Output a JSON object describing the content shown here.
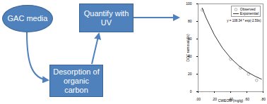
{
  "diagram": {
    "nodes": [
      {
        "label": "GAC media"
      },
      {
        "label": "Desorption of organic carbon"
      },
      {
        "label": "Quantify with UV"
      }
    ]
  },
  "chart_data": {
    "type": "scatter",
    "xlabel": "CWEOM (mg/g)",
    "ylabel": "DOC removal (%)",
    "annotation": "y = 108.34 * exp(-2.59x)",
    "xlim": [
      0,
      0.8
    ],
    "xticks": [
      {
        "value": 0,
        "label": ".00"
      },
      {
        "value": 0.2,
        "label": ".20"
      },
      {
        "value": 0.4,
        "label": ".40"
      },
      {
        "value": 0.6,
        "label": ".60"
      },
      {
        "value": 0.8,
        "label": ".80"
      }
    ],
    "ylim": [
      0,
      100
    ],
    "yticks": [
      0,
      20,
      40,
      60,
      80,
      100
    ],
    "legend": "top-right",
    "series": [
      {
        "name": "Observed",
        "type": "scatter",
        "marker": "circle",
        "color": "#808080",
        "x": [
          0.05,
          0.4,
          0.52,
          0.62,
          0.72
        ],
        "values": [
          93,
          37,
          27,
          20,
          13
        ]
      },
      {
        "name": "Exponential",
        "type": "line",
        "line_style": "solid",
        "color": "#000000",
        "x": [
          0.05,
          0.1,
          0.2,
          0.3,
          0.4,
          0.5,
          0.6,
          0.7,
          0.78
        ],
        "values": [
          95.2,
          83.7,
          64.6,
          49.7,
          38.3,
          29.6,
          22.8,
          17.6,
          14.3
        ]
      }
    ]
  }
}
